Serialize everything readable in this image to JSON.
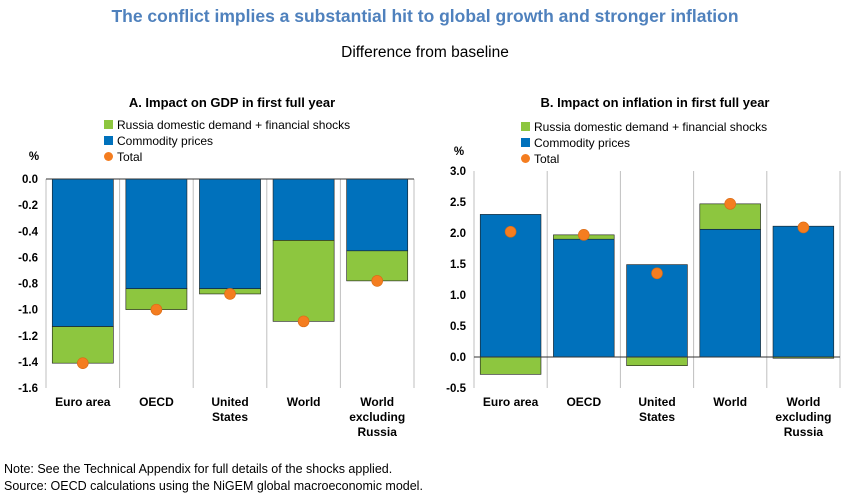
{
  "title": "The conflict implies a substantial hit to global growth and stronger inflation",
  "subtitle": "Difference from baseline",
  "notes": {
    "note": "Note: See the Technical Appendix for full details of the shocks applied.",
    "source": "Source: OECD calculations using the NiGEM global macroeconomic model."
  },
  "colors": {
    "commodity": "#0071bc",
    "russia": "#8dc63f",
    "total": "#f47d20"
  },
  "chart_data": [
    {
      "type": "bar",
      "stacked": true,
      "title": "A. Impact on GDP in first full year",
      "ylabel": "%",
      "ylim": [
        -1.6,
        0.0
      ],
      "yticks": [
        "0.0",
        "-0.2",
        "-0.4",
        "-0.6",
        "-0.8",
        "-1.0",
        "-1.2",
        "-1.4",
        "-1.6"
      ],
      "yticks_values": [
        0.0,
        -0.2,
        -0.4,
        -0.6,
        -0.8,
        -1.0,
        -1.2,
        -1.4,
        -1.6
      ],
      "categories": [
        [
          "Euro area"
        ],
        [
          "OECD"
        ],
        [
          "United",
          "States"
        ],
        [
          "World"
        ],
        [
          "World",
          "excluding",
          "Russia"
        ]
      ],
      "legend": [
        "Russia domestic demand + financial shocks",
        "Commodity prices",
        "Total"
      ],
      "legend_position": "top-right",
      "series": [
        {
          "name": "Commodity prices",
          "type": "bar",
          "values": [
            -1.13,
            -0.84,
            -0.84,
            -0.47,
            -0.55
          ]
        },
        {
          "name": "Russia domestic demand + financial shocks",
          "type": "bar",
          "values": [
            -0.28,
            -0.16,
            -0.04,
            -0.62,
            -0.23
          ]
        },
        {
          "name": "Total",
          "type": "point",
          "values": [
            -1.41,
            -1.0,
            -0.88,
            -1.09,
            -0.78
          ]
        }
      ]
    },
    {
      "type": "bar",
      "stacked": true,
      "title": "B. Impact on inflation in first full year",
      "ylabel": "%",
      "ylim": [
        -0.5,
        3.0
      ],
      "yticks": [
        "3.0",
        "2.5",
        "2.0",
        "1.5",
        "1.0",
        "0.5",
        "0.0",
        "-0.5"
      ],
      "yticks_values": [
        3.0,
        2.5,
        2.0,
        1.5,
        1.0,
        0.5,
        0.0,
        -0.5
      ],
      "categories": [
        [
          "Euro area"
        ],
        [
          "OECD"
        ],
        [
          "United",
          "States"
        ],
        [
          "World"
        ],
        [
          "World",
          "excluding",
          "Russia"
        ]
      ],
      "legend": [
        "Russia domestic demand + financial shocks",
        "Commodity prices",
        "Total"
      ],
      "legend_position": "top-right",
      "series": [
        {
          "name": "Commodity prices",
          "type": "bar",
          "values": [
            2.3,
            1.9,
            1.49,
            2.06,
            2.11
          ]
        },
        {
          "name": "Russia domestic demand + financial shocks",
          "type": "bar",
          "values": [
            -0.28,
            0.07,
            -0.14,
            0.41,
            -0.02
          ]
        },
        {
          "name": "Total",
          "type": "point",
          "values": [
            2.02,
            1.97,
            1.35,
            2.47,
            2.09
          ]
        }
      ]
    }
  ]
}
